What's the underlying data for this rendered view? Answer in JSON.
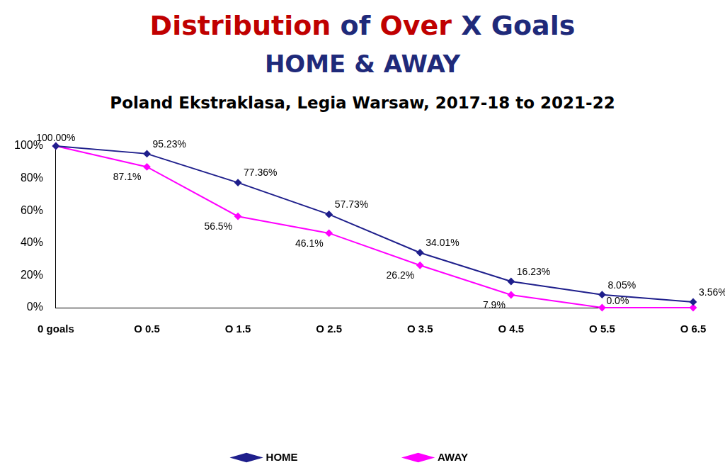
{
  "chart_data": {
    "type": "line",
    "title": "Distribution of Over X Goals",
    "subtitle": "HOME & AWAY",
    "caption": "Poland Ekstraklasa, Legia Warsaw, 2017-18 to 2021-22",
    "categories": [
      "0 goals",
      "O 0.5",
      "O 1.5",
      "O 2.5",
      "O 3.5",
      "O 4.5",
      "O 5.5",
      "O 6.5"
    ],
    "series": [
      {
        "name": "HOME",
        "color": "#1f1f8c",
        "marker": "diamond",
        "values": [
          100,
          95.23,
          77.36,
          57.73,
          34.01,
          16.23,
          8.05,
          3.56
        ],
        "value_labels": [
          "100.00%",
          "95.23%",
          "77.36%",
          "57.73%",
          "34.01%",
          "16.23%",
          "8.05%",
          "3.56%"
        ]
      },
      {
        "name": "AWAY",
        "color": "#ff00ff",
        "marker": "diamond",
        "values": [
          100,
          87.1,
          56.5,
          46.1,
          26.2,
          7.9,
          0.0,
          0.0
        ],
        "value_labels": [
          null,
          "87.1%",
          "56.5%",
          "46.1%",
          "26.2%",
          "7.9%",
          "0.0%",
          null
        ]
      }
    ],
    "ylim": [
      0,
      100
    ],
    "yticks": [
      {
        "value": 0,
        "label": "0%"
      },
      {
        "value": 20,
        "label": "20%"
      },
      {
        "value": 40,
        "label": "40%"
      },
      {
        "value": 60,
        "label": "60%"
      },
      {
        "value": 80,
        "label": "80%"
      },
      {
        "value": 100,
        "label": "100%"
      }
    ],
    "grid": false,
    "legend": "bottom",
    "data_labels": true
  }
}
